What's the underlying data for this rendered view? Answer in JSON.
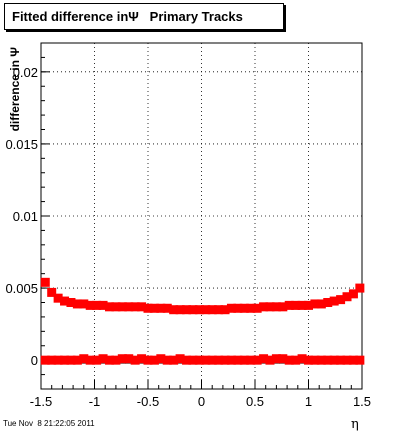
{
  "chart_data": {
    "type": "scatter",
    "title": "Fitted difference inΨ   Primary Tracks",
    "xlabel": "η",
    "ylabel": "difference in Ψ",
    "xlim": [
      -1.5,
      1.5
    ],
    "ylim": [
      -0.002,
      0.022
    ],
    "x_ticks": [
      "-1.5",
      "-1",
      "-0.5",
      "0",
      "0.5",
      "1",
      "1.5"
    ],
    "y_ticks": [
      "0",
      "0.005",
      "0.01",
      "0.015",
      "0.02"
    ],
    "grid": true,
    "series": [
      {
        "color": "#ff0000",
        "x": [
          -1.46,
          -1.4,
          -1.34,
          -1.28,
          -1.22,
          -1.16,
          -1.1,
          -1.04,
          -0.98,
          -0.92,
          -0.86,
          -0.8,
          -0.74,
          -0.68,
          -0.62,
          -0.56,
          -0.5,
          -0.44,
          -0.38,
          -0.32,
          -0.26,
          -0.2,
          -0.14,
          -0.08,
          -0.02,
          0.04,
          0.1,
          0.16,
          0.22,
          0.28,
          0.34,
          0.4,
          0.46,
          0.52,
          0.58,
          0.64,
          0.7,
          0.76,
          0.82,
          0.88,
          0.94,
          1.0,
          1.06,
          1.12,
          1.18,
          1.24,
          1.3,
          1.36,
          1.42,
          1.48
        ],
        "y": [
          0.0054,
          0.0047,
          0.0043,
          0.0041,
          0.004,
          0.0039,
          0.0039,
          0.0038,
          0.0038,
          0.0038,
          0.0037,
          0.0037,
          0.0037,
          0.0037,
          0.0037,
          0.0037,
          0.0036,
          0.0036,
          0.0036,
          0.0036,
          0.0035,
          0.0035,
          0.0035,
          0.0035,
          0.0035,
          0.0035,
          0.0035,
          0.0035,
          0.0035,
          0.0036,
          0.0036,
          0.0036,
          0.0036,
          0.0036,
          0.0037,
          0.0037,
          0.0037,
          0.0037,
          0.0038,
          0.0038,
          0.0038,
          0.0038,
          0.0039,
          0.0039,
          0.004,
          0.0041,
          0.0042,
          0.0044,
          0.0046,
          0.005
        ]
      },
      {
        "color": "#ff0000",
        "x": [
          -1.46,
          -1.4,
          -1.34,
          -1.28,
          -1.22,
          -1.16,
          -1.1,
          -1.04,
          -0.98,
          -0.92,
          -0.86,
          -0.8,
          -0.74,
          -0.68,
          -0.62,
          -0.56,
          -0.5,
          -0.44,
          -0.38,
          -0.32,
          -0.26,
          -0.2,
          -0.14,
          -0.08,
          -0.02,
          0.04,
          0.1,
          0.16,
          0.22,
          0.28,
          0.34,
          0.4,
          0.46,
          0.52,
          0.58,
          0.64,
          0.7,
          0.76,
          0.82,
          0.88,
          0.94,
          1.0,
          1.06,
          1.12,
          1.18,
          1.24,
          1.3,
          1.36,
          1.42,
          1.48
        ],
        "y": [
          0.0,
          0.0,
          0.0,
          0.0,
          0.0,
          0.0,
          0.0001,
          0.0,
          0.0,
          0.0001,
          0.0,
          0.0,
          0.0001,
          0.0001,
          0.0,
          0.0001,
          0.0,
          0.0,
          0.0001,
          0.0,
          0.0,
          0.0001,
          0.0,
          0.0,
          0.0,
          0.0,
          0.0,
          0.0,
          0.0,
          0.0,
          0.0,
          0.0,
          0.0,
          0.0,
          0.0001,
          0.0,
          0.0001,
          0.0001,
          0.0,
          0.0,
          0.0001,
          0.0,
          0.0,
          0.0,
          0.0,
          0.0,
          0.0,
          0.0,
          0.0,
          0.0
        ]
      },
      {
        "color": "#000000",
        "x": [
          -1.46,
          -1.4,
          -1.34,
          -1.28,
          -1.22,
          -1.16,
          -1.1,
          -1.04,
          -0.98,
          -0.92,
          -0.86,
          -0.8,
          -0.74,
          -0.68,
          -0.62,
          -0.56,
          -0.5,
          -0.44,
          -0.38,
          -0.32,
          -0.26,
          -0.2,
          -0.14,
          -0.08,
          -0.02,
          0.04,
          0.1,
          0.16,
          0.22,
          0.28,
          0.34,
          0.4,
          0.46,
          0.52,
          0.58,
          0.64,
          0.7,
          0.76,
          0.82,
          0.88,
          0.94,
          1.0,
          1.06,
          1.12,
          1.18,
          1.24,
          1.3,
          1.36,
          1.42,
          1.48
        ],
        "y": [
          -0.0001,
          -0.0001,
          -0.0001,
          -0.0001,
          -0.0001,
          -0.0001,
          -0.0001,
          -0.0001,
          -0.0001,
          -0.0001,
          -0.0001,
          -0.0001,
          -0.0001,
          -0.0001,
          -0.0001,
          -0.0001,
          -0.0001,
          -0.0001,
          -0.0001,
          -0.0001,
          -0.0001,
          -0.0001,
          -0.0001,
          -0.0001,
          -0.0001,
          -0.0001,
          -0.0001,
          -0.0001,
          -0.0001,
          -0.0001,
          -0.0001,
          -0.0001,
          -0.0001,
          -0.0001,
          -0.0001,
          -0.0001,
          -0.0001,
          -0.0001,
          -0.0001,
          -0.0001,
          -0.0001,
          -0.0001,
          -0.0001,
          -0.0001,
          -0.0001,
          -0.0001,
          -0.0001,
          -0.0001,
          -0.0001,
          -0.0001
        ]
      }
    ]
  },
  "footer": {
    "timestamp": "Tue Nov  8 21:22:05 2011"
  }
}
